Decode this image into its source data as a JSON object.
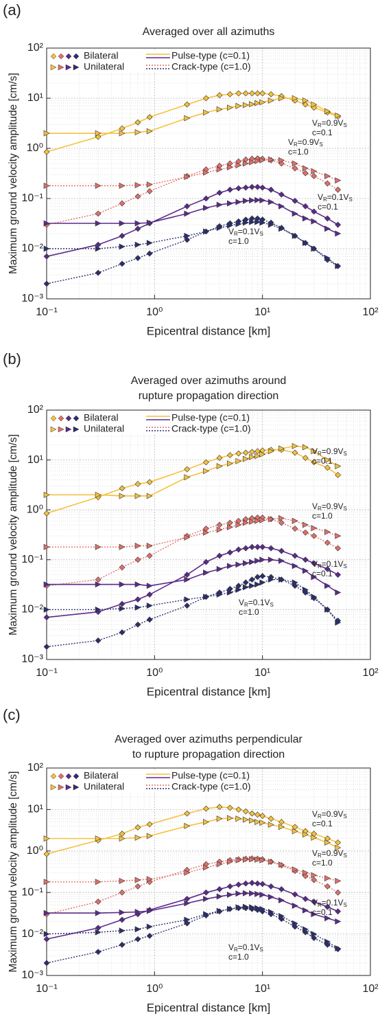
{
  "chart_data": [
    {
      "type": "line",
      "panel": "(a)",
      "title": [
        "Averaged over all azimuths"
      ],
      "xlabel": "Epicentral distance [km]",
      "ylabel": "Maximum ground velocity amplitude [cm/s]",
      "xscale": "log",
      "yscale": "log",
      "grid": true,
      "xlim": [
        0.1,
        100
      ],
      "ylim": [
        0.001,
        100
      ],
      "xticks": [
        {
          "value": 0.1,
          "label": "10⁻¹"
        },
        {
          "value": 1,
          "label": "10⁰"
        },
        {
          "value": 10,
          "label": "10¹"
        },
        {
          "value": 100,
          "label": "10²"
        }
      ],
      "yticks": [
        {
          "value": 0.001,
          "label": "10⁻³"
        },
        {
          "value": 0.01,
          "label": "10⁻²"
        },
        {
          "value": 0.1,
          "label": "10⁻¹"
        },
        {
          "value": 1,
          "label": "10⁰"
        },
        {
          "value": 10,
          "label": "10¹"
        },
        {
          "value": 100,
          "label": "10²"
        }
      ],
      "legend": {
        "markers": [
          "Bilateral",
          "Unilateral"
        ],
        "lines": [
          "Pulse-type (c=0.1)",
          "Crack-type (c=1.0)"
        ]
      },
      "annotations": [
        {
          "parts": [
            "V",
            "R",
            "=0.9V",
            "S"
          ],
          "c": "c=0.1"
        },
        {
          "parts": [
            "V",
            "R",
            "=0.9V",
            "S"
          ],
          "c": "c=1.0"
        },
        {
          "parts": [
            "V",
            "R",
            "=0.1V",
            "S"
          ],
          "c": "c=0.1"
        },
        {
          "parts": [
            "V",
            "R",
            "=0.1V",
            "S"
          ],
          "c": "c=1.0"
        }
      ],
      "x": [
        0.1,
        0.3,
        0.5,
        0.7,
        0.9,
        2,
        3,
        4,
        5,
        6,
        7,
        8,
        9,
        10,
        12,
        15,
        20,
        25,
        30,
        40,
        50
      ],
      "series": [
        {
          "color": "#f4c13f",
          "marker": "diamond",
          "linestyle": "solid",
          "values": [
            0.85,
            1.7,
            2.5,
            3.3,
            4.2,
            7.5,
            10,
            11.5,
            12,
            12.5,
            12.5,
            12.5,
            12.5,
            12.5,
            12,
            11,
            9,
            7.5,
            6.5,
            5.2,
            4.3
          ]
        },
        {
          "color": "#f4c13f",
          "marker": "triangle",
          "linestyle": "solid",
          "values": [
            2,
            2,
            2,
            2.1,
            2.2,
            4,
            5.2,
            6,
            6.5,
            7,
            7.3,
            7.6,
            8,
            8.3,
            9,
            10,
            10,
            9,
            7.5,
            5.5,
            4.5
          ]
        },
        {
          "color": "#e0706a",
          "marker": "diamond",
          "linestyle": "dotted",
          "values": [
            0.03,
            0.05,
            0.08,
            0.11,
            0.14,
            0.28,
            0.38,
            0.45,
            0.5,
            0.55,
            0.6,
            0.62,
            0.63,
            0.62,
            0.58,
            0.5,
            0.4,
            0.32,
            0.28,
            0.2,
            0.15
          ]
        },
        {
          "color": "#e0706a",
          "marker": "triangle",
          "linestyle": "dotted",
          "values": [
            0.18,
            0.18,
            0.18,
            0.185,
            0.19,
            0.27,
            0.33,
            0.38,
            0.42,
            0.46,
            0.5,
            0.53,
            0.56,
            0.58,
            0.6,
            0.58,
            0.5,
            0.4,
            0.35,
            0.28,
            0.23
          ]
        },
        {
          "color": "#5b2a8c",
          "marker": "diamond",
          "linestyle": "solid",
          "values": [
            0.007,
            0.012,
            0.018,
            0.025,
            0.032,
            0.07,
            0.1,
            0.13,
            0.15,
            0.16,
            0.165,
            0.17,
            0.17,
            0.165,
            0.15,
            0.12,
            0.09,
            0.07,
            0.055,
            0.04,
            0.03
          ]
        },
        {
          "color": "#5b2a8c",
          "marker": "triangle",
          "linestyle": "solid",
          "values": [
            0.032,
            0.032,
            0.032,
            0.032,
            0.033,
            0.05,
            0.065,
            0.075,
            0.08,
            0.085,
            0.09,
            0.092,
            0.093,
            0.092,
            0.085,
            0.07,
            0.05,
            0.04,
            0.035,
            0.025,
            0.02
          ]
        },
        {
          "color": "#2b2f6e",
          "marker": "diamond",
          "linestyle": "dotted",
          "values": [
            0.002,
            0.0033,
            0.005,
            0.0065,
            0.008,
            0.015,
            0.022,
            0.028,
            0.032,
            0.035,
            0.038,
            0.04,
            0.04,
            0.038,
            0.033,
            0.026,
            0.018,
            0.013,
            0.01,
            0.006,
            0.0045
          ]
        },
        {
          "color": "#2b2f6e",
          "marker": "triangle",
          "linestyle": "dotted",
          "values": [
            0.01,
            0.01,
            0.011,
            0.012,
            0.013,
            0.018,
            0.022,
            0.026,
            0.029,
            0.031,
            0.033,
            0.034,
            0.034,
            0.033,
            0.03,
            0.025,
            0.018,
            0.013,
            0.01,
            0.0065,
            0.0045
          ]
        }
      ]
    },
    {
      "type": "line",
      "panel": "(b)",
      "title": [
        "Averaged over azimuths around",
        "rupture propagation direction"
      ],
      "xlabel": "Epicentral distance [km]",
      "ylabel": "Maximum ground velocity amplitude [cm/s]",
      "xscale": "log",
      "yscale": "log",
      "grid": true,
      "xlim": [
        0.1,
        100
      ],
      "ylim": [
        0.001,
        100
      ],
      "xticks": [
        {
          "value": 0.1,
          "label": "10⁻¹"
        },
        {
          "value": 1,
          "label": "10⁰"
        },
        {
          "value": 10,
          "label": "10¹"
        },
        {
          "value": 100,
          "label": "10²"
        }
      ],
      "yticks": [
        {
          "value": 0.001,
          "label": "10⁻³"
        },
        {
          "value": 0.01,
          "label": "10⁻²"
        },
        {
          "value": 0.1,
          "label": "10⁻¹"
        },
        {
          "value": 1,
          "label": "10⁰"
        },
        {
          "value": 10,
          "label": "10¹"
        },
        {
          "value": 100,
          "label": "10²"
        }
      ],
      "legend": {
        "markers": [
          "Bilateral",
          "Unilateral"
        ],
        "lines": [
          "Pulse-type (c=0.1)",
          "Crack-type (c=1.0)"
        ]
      },
      "annotations": [
        {
          "parts": [
            "V",
            "R",
            "=0.9V",
            "S"
          ],
          "c": "c=0.1"
        },
        {
          "parts": [
            "V",
            "R",
            "=0.9V",
            "S"
          ],
          "c": "c=1.0"
        },
        {
          "parts": [
            "V",
            "R",
            "=0.1V",
            "S"
          ],
          "c": "c=0.1"
        },
        {
          "parts": [
            "V",
            "R",
            "=0.1V",
            "S"
          ],
          "c": "c=1.0"
        }
      ],
      "x": [
        0.1,
        0.3,
        0.5,
        0.7,
        0.9,
        2,
        3,
        4,
        5,
        6,
        7,
        8,
        9,
        10,
        12,
        15,
        20,
        25,
        30,
        40,
        50
      ],
      "series": [
        {
          "color": "#f4c13f",
          "marker": "diamond",
          "linestyle": "solid",
          "values": [
            0.85,
            1.8,
            2.7,
            3.3,
            3.6,
            6.5,
            9,
            11,
            12.5,
            13.5,
            14,
            14.5,
            15,
            15.5,
            16,
            16,
            14,
            11,
            9,
            7,
            5
          ]
        },
        {
          "color": "#f4c13f",
          "marker": "triangle",
          "linestyle": "solid",
          "values": [
            2,
            2,
            1.9,
            1.9,
            1.9,
            4.5,
            6,
            7.5,
            8.5,
            9.5,
            10.5,
            11.5,
            12,
            13,
            15,
            17,
            19,
            18,
            15,
            10,
            7.5
          ]
        },
        {
          "color": "#e0706a",
          "marker": "diamond",
          "linestyle": "dotted",
          "values": [
            0.03,
            0.04,
            0.07,
            0.1,
            0.12,
            0.3,
            0.42,
            0.5,
            0.55,
            0.6,
            0.65,
            0.68,
            0.7,
            0.7,
            0.65,
            0.55,
            0.42,
            0.35,
            0.3,
            0.22,
            0.17
          ]
        },
        {
          "color": "#e0706a",
          "marker": "triangle",
          "linestyle": "dotted",
          "values": [
            0.18,
            0.18,
            0.18,
            0.19,
            0.19,
            0.28,
            0.35,
            0.4,
            0.45,
            0.5,
            0.55,
            0.58,
            0.6,
            0.62,
            0.65,
            0.68,
            0.6,
            0.5,
            0.43,
            0.36,
            0.3
          ]
        },
        {
          "color": "#5b2a8c",
          "marker": "diamond",
          "linestyle": "solid",
          "values": [
            0.007,
            0.009,
            0.013,
            0.016,
            0.02,
            0.05,
            0.09,
            0.12,
            0.14,
            0.16,
            0.17,
            0.18,
            0.18,
            0.18,
            0.17,
            0.15,
            0.12,
            0.1,
            0.085,
            0.065,
            0.05
          ]
        },
        {
          "color": "#5b2a8c",
          "marker": "triangle",
          "linestyle": "solid",
          "values": [
            0.032,
            0.032,
            0.032,
            0.032,
            0.03,
            0.04,
            0.055,
            0.065,
            0.075,
            0.08,
            0.085,
            0.09,
            0.095,
            0.1,
            0.1,
            0.095,
            0.075,
            0.06,
            0.045,
            0.03,
            0.022
          ]
        },
        {
          "color": "#2b2f6e",
          "marker": "diamond",
          "linestyle": "dotted",
          "values": [
            0.0018,
            0.0024,
            0.0035,
            0.005,
            0.0063,
            0.012,
            0.018,
            0.022,
            0.026,
            0.03,
            0.035,
            0.04,
            0.045,
            0.047,
            0.045,
            0.04,
            0.03,
            0.022,
            0.017,
            0.01,
            0.006
          ]
        },
        {
          "color": "#2b2f6e",
          "marker": "triangle",
          "linestyle": "dotted",
          "values": [
            0.01,
            0.01,
            0.0105,
            0.011,
            0.012,
            0.016,
            0.018,
            0.02,
            0.022,
            0.025,
            0.028,
            0.03,
            0.032,
            0.035,
            0.04,
            0.04,
            0.035,
            0.025,
            0.018,
            0.01,
            0.0055
          ]
        }
      ]
    },
    {
      "type": "line",
      "panel": "(c)",
      "title": [
        "Averaged over azimuths perpendicular",
        "to rupture propagation direction"
      ],
      "xlabel": "Epicentral distance [km]",
      "ylabel": "Maximum ground velocity amplitude [cm/s]",
      "xscale": "log",
      "yscale": "log",
      "grid": true,
      "xlim": [
        0.1,
        100
      ],
      "ylim": [
        0.001,
        100
      ],
      "xticks": [
        {
          "value": 0.1,
          "label": "10⁻¹"
        },
        {
          "value": 1,
          "label": "10⁰"
        },
        {
          "value": 10,
          "label": "10¹"
        },
        {
          "value": 100,
          "label": "10²"
        }
      ],
      "yticks": [
        {
          "value": 0.001,
          "label": "10⁻³"
        },
        {
          "value": 0.01,
          "label": "10⁻²"
        },
        {
          "value": 0.1,
          "label": "10⁻¹"
        },
        {
          "value": 1,
          "label": "10⁰"
        },
        {
          "value": 10,
          "label": "10¹"
        },
        {
          "value": 100,
          "label": "10²"
        }
      ],
      "legend": {
        "markers": [
          "Bilateral",
          "Unilateral"
        ],
        "lines": [
          "Pulse-type (c=0.1)",
          "Crack-type (c=1.0)"
        ]
      },
      "annotations": [
        {
          "parts": [
            "V",
            "R",
            "=0.9V",
            "S"
          ],
          "c": "c=0.1"
        },
        {
          "parts": [
            "V",
            "R",
            "=0.9V",
            "S"
          ],
          "c": "c=1.0"
        },
        {
          "parts": [
            "V",
            "R",
            "=0.1V",
            "S"
          ],
          "c": "c=0.1"
        },
        {
          "parts": [
            "V",
            "R",
            "=0.1V",
            "S"
          ],
          "c": "c=1.0"
        }
      ],
      "x": [
        0.1,
        0.3,
        0.5,
        0.7,
        0.9,
        2,
        3,
        4,
        5,
        6,
        7,
        8,
        9,
        10,
        12,
        15,
        20,
        25,
        30,
        40,
        50
      ],
      "series": [
        {
          "color": "#f4c13f",
          "marker": "diamond",
          "linestyle": "solid",
          "values": [
            0.85,
            1.8,
            2.6,
            3.7,
            4.4,
            8,
            10.5,
            11.5,
            11,
            10,
            9,
            8,
            7.5,
            7,
            6,
            5,
            3.8,
            3,
            2.6,
            2,
            1.6
          ]
        },
        {
          "color": "#f4c13f",
          "marker": "triangle",
          "linestyle": "solid",
          "values": [
            2,
            2,
            2,
            2.1,
            2.3,
            4,
            5,
            6,
            6.2,
            6,
            5.7,
            5.4,
            5,
            4.8,
            4.3,
            3.8,
            3,
            2.5,
            2.1,
            1.6,
            1.2
          ]
        },
        {
          "color": "#e0706a",
          "marker": "diamond",
          "linestyle": "dotted",
          "values": [
            0.03,
            0.06,
            0.1,
            0.14,
            0.18,
            0.35,
            0.48,
            0.55,
            0.6,
            0.63,
            0.65,
            0.66,
            0.65,
            0.63,
            0.55,
            0.45,
            0.33,
            0.25,
            0.2,
            0.14,
            0.1
          ]
        },
        {
          "color": "#e0706a",
          "marker": "triangle",
          "linestyle": "dotted",
          "values": [
            0.18,
            0.18,
            0.19,
            0.2,
            0.21,
            0.3,
            0.4,
            0.48,
            0.55,
            0.6,
            0.62,
            0.63,
            0.62,
            0.6,
            0.55,
            0.47,
            0.36,
            0.3,
            0.26,
            0.22,
            0.19
          ]
        },
        {
          "color": "#5b2a8c",
          "marker": "diamond",
          "linestyle": "solid",
          "values": [
            0.0075,
            0.014,
            0.022,
            0.03,
            0.038,
            0.07,
            0.1,
            0.12,
            0.14,
            0.155,
            0.165,
            0.17,
            0.165,
            0.16,
            0.14,
            0.12,
            0.09,
            0.07,
            0.06,
            0.045,
            0.035
          ]
        },
        {
          "color": "#5b2a8c",
          "marker": "triangle",
          "linestyle": "solid",
          "values": [
            0.032,
            0.032,
            0.033,
            0.034,
            0.036,
            0.055,
            0.07,
            0.08,
            0.088,
            0.094,
            0.096,
            0.095,
            0.092,
            0.088,
            0.078,
            0.065,
            0.048,
            0.037,
            0.03,
            0.024,
            0.02
          ]
        },
        {
          "color": "#2b2f6e",
          "marker": "diamond",
          "linestyle": "dotted",
          "values": [
            0.002,
            0.0037,
            0.0055,
            0.0075,
            0.009,
            0.018,
            0.028,
            0.035,
            0.04,
            0.042,
            0.042,
            0.04,
            0.038,
            0.035,
            0.03,
            0.023,
            0.015,
            0.011,
            0.008,
            0.0055,
            0.0043
          ]
        },
        {
          "color": "#2b2f6e",
          "marker": "triangle",
          "linestyle": "dotted",
          "values": [
            0.01,
            0.011,
            0.012,
            0.013,
            0.015,
            0.022,
            0.03,
            0.036,
            0.04,
            0.044,
            0.045,
            0.044,
            0.042,
            0.04,
            0.034,
            0.027,
            0.018,
            0.013,
            0.01,
            0.0065,
            0.0045
          ]
        }
      ]
    }
  ]
}
